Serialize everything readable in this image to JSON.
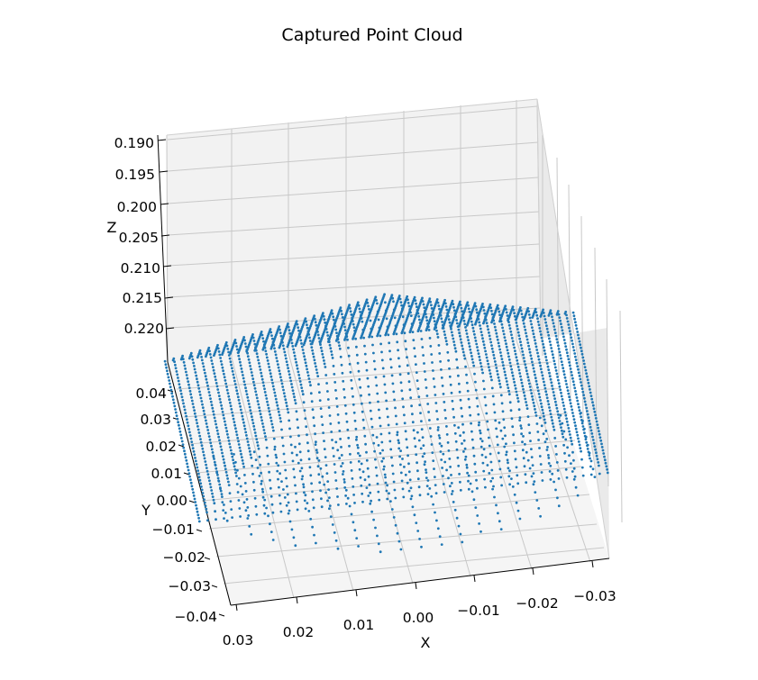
{
  "chart_data": {
    "type": "scatter",
    "dimensions": 3,
    "title": "Captured Point Cloud",
    "xlabel": "X",
    "ylabel": "Y",
    "zlabel": "Z",
    "x_ticks": [
      "0.03",
      "0.02",
      "0.01",
      "0.00",
      "−0.01",
      "−0.02",
      "−0.03"
    ],
    "y_ticks": [
      "0.04",
      "0.03",
      "0.02",
      "0.01",
      "0.00",
      "−0.01",
      "−0.02",
      "−0.03",
      "−0.04"
    ],
    "z_ticks": [
      "0.190",
      "0.195",
      "0.200",
      "0.205",
      "0.210",
      "0.215",
      "0.220"
    ],
    "xlim": [
      -0.035,
      0.035
    ],
    "ylim": [
      -0.045,
      0.045
    ],
    "zlim": [
      0.188,
      0.223
    ],
    "grid": true,
    "marker_color": "#1f77b4",
    "point_sets": [
      {
        "kind": "pyramid",
        "apex": [
          0.001,
          0.025,
          0.2005
        ],
        "half_width": 0.03,
        "base_z": 0.222,
        "grid_step": 0.0012
      },
      {
        "kind": "lattice",
        "x_range": [
          -0.03,
          0.03
        ],
        "y_range": [
          -0.03,
          0.02
        ],
        "z": 0.222,
        "grid_step": 0.003
      }
    ]
  }
}
